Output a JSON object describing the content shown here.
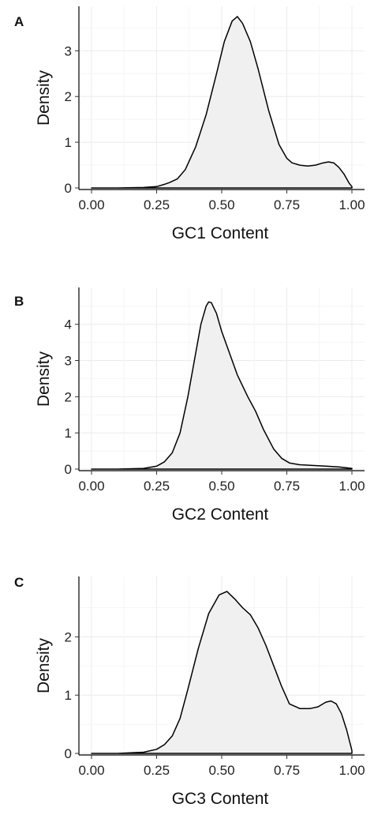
{
  "chart_data": [
    {
      "panel_label": "A",
      "type": "area",
      "xlabel": "GC1 Content",
      "ylabel": "Density",
      "xlim": [
        0,
        1
      ],
      "ylim": [
        0,
        3.8
      ],
      "xticks": [
        "0.00",
        "0.25",
        "0.50",
        "0.75",
        "1.00"
      ],
      "xtick_values": [
        0,
        0.25,
        0.5,
        0.75,
        1.0
      ],
      "yticks": [
        "0",
        "1",
        "2",
        "3"
      ],
      "ytick_values": [
        0,
        1,
        2,
        3
      ],
      "grid": true,
      "fill_color": "#f0f0f0",
      "line_color": "#000000",
      "x": [
        0.0,
        0.1,
        0.2,
        0.25,
        0.28,
        0.3,
        0.33,
        0.36,
        0.4,
        0.44,
        0.48,
        0.51,
        0.54,
        0.56,
        0.58,
        0.61,
        0.64,
        0.68,
        0.72,
        0.75,
        0.77,
        0.8,
        0.83,
        0.86,
        0.89,
        0.91,
        0.93,
        0.95,
        0.97,
        0.99,
        1.0
      ],
      "y": [
        0.0,
        0.0,
        0.01,
        0.03,
        0.08,
        0.12,
        0.2,
        0.4,
        0.9,
        1.6,
        2.5,
        3.2,
        3.65,
        3.75,
        3.6,
        3.2,
        2.6,
        1.7,
        0.95,
        0.65,
        0.55,
        0.5,
        0.48,
        0.5,
        0.55,
        0.57,
        0.55,
        0.45,
        0.3,
        0.1,
        0.03
      ]
    },
    {
      "panel_label": "B",
      "type": "area",
      "xlabel": "GC2 Content",
      "ylabel": "Density",
      "xlim": [
        0,
        1
      ],
      "ylim": [
        0,
        4.8
      ],
      "xticks": [
        "0.00",
        "0.25",
        "0.50",
        "0.75",
        "1.00"
      ],
      "xtick_values": [
        0,
        0.25,
        0.5,
        0.75,
        1.0
      ],
      "yticks": [
        "0",
        "1",
        "2",
        "3",
        "4"
      ],
      "ytick_values": [
        0,
        1,
        2,
        3,
        4
      ],
      "grid": true,
      "fill_color": "#f0f0f0",
      "line_color": "#000000",
      "x": [
        0.0,
        0.1,
        0.2,
        0.25,
        0.28,
        0.31,
        0.34,
        0.37,
        0.4,
        0.42,
        0.44,
        0.45,
        0.46,
        0.48,
        0.5,
        0.53,
        0.56,
        0.6,
        0.63,
        0.66,
        0.7,
        0.73,
        0.76,
        0.8,
        0.85,
        0.9,
        0.95,
        1.0
      ],
      "y": [
        0.0,
        0.0,
        0.02,
        0.08,
        0.2,
        0.45,
        1.0,
        2.0,
        3.2,
        4.0,
        4.5,
        4.62,
        4.6,
        4.3,
        3.8,
        3.2,
        2.6,
        2.0,
        1.6,
        1.1,
        0.55,
        0.3,
        0.17,
        0.12,
        0.1,
        0.08,
        0.06,
        0.02
      ]
    },
    {
      "panel_label": "C",
      "type": "area",
      "xlabel": "GC3 Content",
      "ylabel": "Density",
      "xlim": [
        0,
        1
      ],
      "ylim": [
        0,
        2.9
      ],
      "xticks": [
        "0.00",
        "0.25",
        "0.50",
        "0.75",
        "1.00"
      ],
      "xtick_values": [
        0,
        0.25,
        0.5,
        0.75,
        1.0
      ],
      "yticks": [
        "0",
        "1",
        "2"
      ],
      "ytick_values": [
        0,
        1,
        2
      ],
      "grid": true,
      "fill_color": "#f0f0f0",
      "line_color": "#000000",
      "x": [
        0.0,
        0.1,
        0.2,
        0.25,
        0.28,
        0.31,
        0.34,
        0.37,
        0.41,
        0.45,
        0.49,
        0.52,
        0.55,
        0.58,
        0.61,
        0.64,
        0.67,
        0.7,
        0.73,
        0.76,
        0.8,
        0.84,
        0.87,
        0.9,
        0.92,
        0.94,
        0.96,
        0.98,
        1.0
      ],
      "y": [
        0.0,
        0.0,
        0.02,
        0.07,
        0.15,
        0.3,
        0.6,
        1.1,
        1.8,
        2.4,
        2.72,
        2.78,
        2.65,
        2.5,
        2.38,
        2.15,
        1.85,
        1.5,
        1.15,
        0.85,
        0.77,
        0.77,
        0.8,
        0.88,
        0.9,
        0.85,
        0.68,
        0.4,
        0.05
      ]
    }
  ]
}
